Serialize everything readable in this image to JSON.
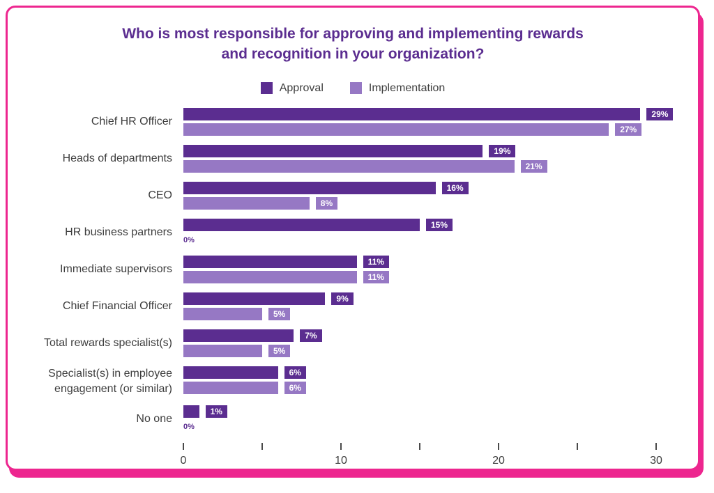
{
  "title": {
    "line1": "Who is most responsible for approving and implementing rewards",
    "line2": "and recognition in your organization?"
  },
  "colors": {
    "approval": "#5b2d90",
    "implementation": "#9678c4",
    "card_border": "#ed268f",
    "title_text": "#5b2d90",
    "label_text": "#3d3d3d"
  },
  "chart_data": {
    "type": "bar",
    "orientation": "horizontal",
    "title": "Who is most responsible for approving and implementing rewards and recognition in your organization?",
    "legend_position": "top",
    "categories": [
      "Chief HR Officer",
      "Heads of departments",
      "CEO",
      "HR business partners",
      "Immediate supervisors",
      "Chief Financial Officer",
      "Total rewards specialist(s)",
      "Specialist(s) in employee engagement (or similar)",
      "No one"
    ],
    "series": [
      {
        "name": "Approval",
        "color": "#5b2d90",
        "values": [
          29,
          19,
          16,
          15,
          11,
          9,
          7,
          6,
          1
        ]
      },
      {
        "name": "Implementation",
        "color": "#9678c4",
        "values": [
          27,
          21,
          8,
          0,
          11,
          5,
          5,
          6,
          0
        ]
      }
    ],
    "value_suffix": "%",
    "xlim": [
      0,
      30
    ],
    "xticks": [
      0,
      5,
      10,
      15,
      20,
      25,
      30
    ],
    "xtick_labeled": [
      0,
      10,
      20,
      30
    ],
    "grid": false
  }
}
